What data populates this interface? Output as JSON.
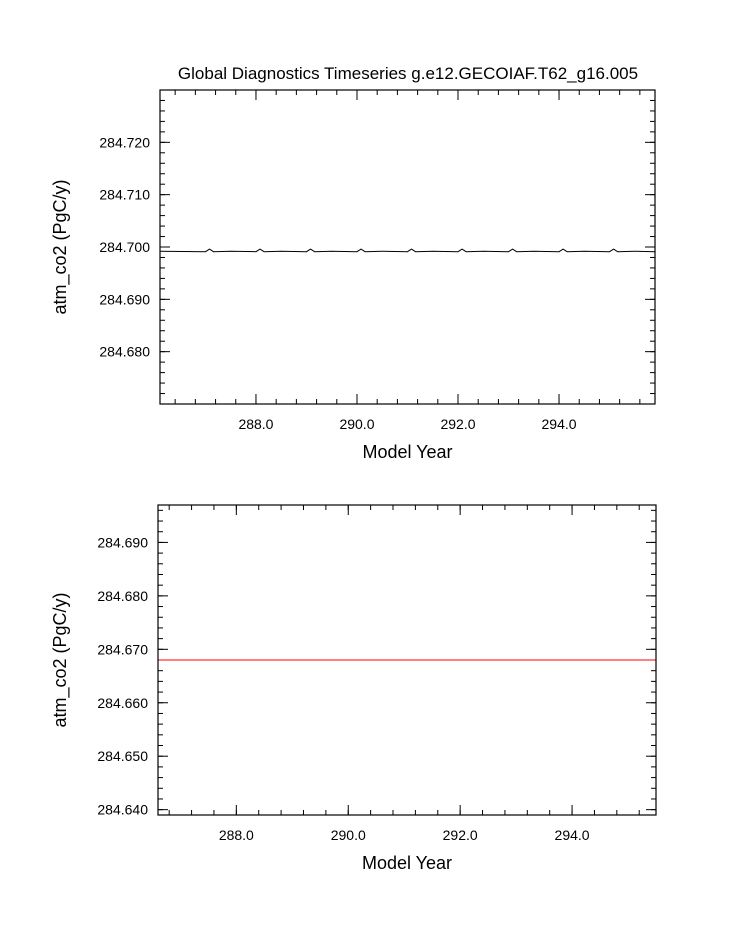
{
  "title": "Global Diagnostics Timeseries g.e12.GECOIAF.T62_g16.005",
  "chart_data": [
    {
      "type": "line",
      "xlabel": "Model Year",
      "ylabel": "atm_co2 (PgC/y)",
      "xlim": [
        286.1,
        295.9
      ],
      "ylim": [
        284.67,
        284.73
      ],
      "x_ticks": [
        288.0,
        290.0,
        292.0,
        294.0
      ],
      "x_tick_labels": [
        "288.0",
        "290.0",
        "292.0",
        "294.0"
      ],
      "y_ticks": [
        284.68,
        284.69,
        284.7,
        284.71,
        284.72
      ],
      "y_tick_labels": [
        "284.680",
        "284.690",
        "284.700",
        "284.710",
        "284.720"
      ],
      "series": [
        {
          "color": "#000000",
          "x": [
            286.1,
            287.0,
            287.08,
            287.16,
            287.5,
            288.0,
            288.08,
            288.16,
            288.5,
            289.0,
            289.08,
            289.16,
            289.5,
            290.0,
            290.08,
            290.16,
            290.5,
            291.0,
            291.08,
            291.16,
            291.5,
            292.0,
            292.08,
            292.16,
            292.5,
            293.0,
            293.08,
            293.16,
            293.5,
            294.0,
            294.08,
            294.16,
            294.5,
            295.0,
            295.08,
            295.16,
            295.5,
            295.9
          ],
          "y": [
            284.6992,
            284.6991,
            284.6996,
            284.6991,
            284.6992,
            284.6991,
            284.6996,
            284.6991,
            284.6992,
            284.6991,
            284.6996,
            284.6991,
            284.6992,
            284.6991,
            284.6996,
            284.6991,
            284.6992,
            284.6991,
            284.6996,
            284.6991,
            284.6992,
            284.6991,
            284.6996,
            284.6991,
            284.6992,
            284.6991,
            284.6996,
            284.6991,
            284.6992,
            284.6991,
            284.6996,
            284.6991,
            284.6992,
            284.6991,
            284.6996,
            284.6991,
            284.6992,
            284.6991
          ]
        }
      ]
    },
    {
      "type": "line",
      "xlabel": "Model Year",
      "ylabel": "atm_co2 (PgC/y)",
      "xlim": [
        286.6,
        295.5
      ],
      "ylim": [
        284.639,
        284.697
      ],
      "x_ticks": [
        288.0,
        290.0,
        292.0,
        294.0
      ],
      "x_tick_labels": [
        "288.0",
        "290.0",
        "292.0",
        "294.0"
      ],
      "y_ticks": [
        284.64,
        284.65,
        284.66,
        284.67,
        284.68,
        284.69
      ],
      "y_tick_labels": [
        "284.640",
        "284.650",
        "284.660",
        "284.670",
        "284.680",
        "284.690"
      ],
      "series": [
        {
          "color": "#ff0000",
          "x": [
            286.6,
            295.5
          ],
          "y": [
            284.668,
            284.668
          ]
        }
      ]
    }
  ]
}
